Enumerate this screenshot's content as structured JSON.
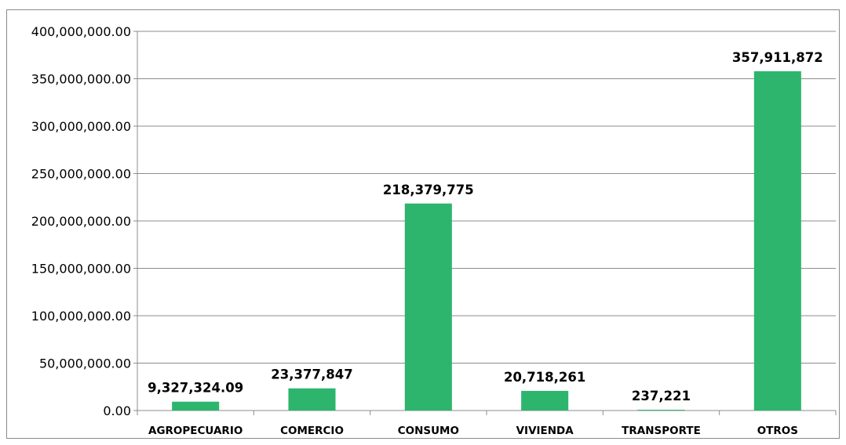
{
  "chart_data": {
    "type": "bar",
    "title": "",
    "xlabel": "",
    "ylabel": "",
    "categories": [
      "AGROPECUARIO",
      "COMERCIO",
      "CONSUMO",
      "VIVIENDA",
      "TRANSPORTE",
      "OTROS"
    ],
    "values": [
      9327324.09,
      23377847,
      218379775,
      20718261,
      237221,
      357911872
    ],
    "data_labels": [
      "9,327,324.09",
      "23,377,847",
      "218,379,775",
      "20,718,261",
      "237,221",
      "357,911,872"
    ],
    "ylim": [
      0,
      400000000
    ],
    "yticks": [
      0,
      50000000,
      100000000,
      150000000,
      200000000,
      250000000,
      300000000,
      350000000,
      400000000
    ],
    "ytick_labels": [
      "0.00",
      "50,000,000.00",
      "100,000,000.00",
      "150,000,000.00",
      "200,000,000.00",
      "250,000,000.00",
      "300,000,000.00",
      "350,000,000.00",
      "400,000,000.00"
    ],
    "grid": true,
    "legend": "none",
    "bar_color": "#2db56e",
    "grid_color": "#8c8c8c"
  }
}
